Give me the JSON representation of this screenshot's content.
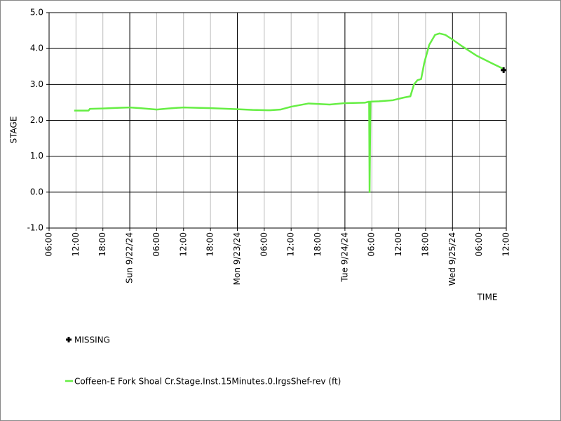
{
  "chart_data": {
    "type": "line",
    "ylabel": "STAGE",
    "xlabel": "TIME",
    "xlim": [
      6,
      108
    ],
    "ylim": [
      -1,
      5
    ],
    "xticks": [
      {
        "value": 6,
        "label": "06:00"
      },
      {
        "value": 12,
        "label": "12:00"
      },
      {
        "value": 18,
        "label": "18:00"
      },
      {
        "value": 24,
        "label": "Sun 9/22/24"
      },
      {
        "value": 30,
        "label": "06:00"
      },
      {
        "value": 36,
        "label": "12:00"
      },
      {
        "value": 42,
        "label": "18:00"
      },
      {
        "value": 48,
        "label": "Mon 9/23/24"
      },
      {
        "value": 54,
        "label": "06:00"
      },
      {
        "value": 60,
        "label": "12:00"
      },
      {
        "value": 66,
        "label": "18:00"
      },
      {
        "value": 72,
        "label": "Tue 9/24/24"
      },
      {
        "value": 78,
        "label": "06:00"
      },
      {
        "value": 84,
        "label": "12:00"
      },
      {
        "value": 90,
        "label": "18:00"
      },
      {
        "value": 96,
        "label": "Wed 9/25/24"
      },
      {
        "value": 102,
        "label": "06:00"
      },
      {
        "value": 108,
        "label": "12:00"
      }
    ],
    "yticks": [
      {
        "value": 5,
        "label": "5.0"
      },
      {
        "value": 4,
        "label": "4.0"
      },
      {
        "value": 3,
        "label": "3.0"
      },
      {
        "value": 2,
        "label": "2.0"
      },
      {
        "value": 1,
        "label": "1.0"
      },
      {
        "value": 0,
        "label": "0.0"
      },
      {
        "value": -1,
        "label": "-1.0"
      }
    ],
    "grid": true,
    "series": [
      {
        "name": "Coffeen-E Fork Shoal Cr.Stage.Inst.15Minutes.0.lrgsShef-rev (ft)",
        "color": "#66ee44",
        "x": [
          11.6,
          14.8,
          15.1,
          18,
          21.6,
          24,
          26.3,
          30,
          32.6,
          36,
          38.9,
          42,
          48,
          51.4,
          55.3,
          57.6,
          60,
          63.9,
          65.5,
          68.6,
          72,
          76.4,
          77.4,
          77.5,
          77.7,
          79.6,
          82.7,
          85,
          86.6,
          87.4,
          88.2,
          89,
          89.7,
          90.8,
          92.1,
          93.1,
          94.4,
          96,
          98.3,
          101.4,
          104.6,
          106.9,
          107.4
        ],
        "values": [
          2.27,
          2.27,
          2.32,
          2.33,
          2.35,
          2.36,
          2.34,
          2.3,
          2.33,
          2.36,
          2.35,
          2.34,
          2.31,
          2.29,
          2.28,
          2.3,
          2.38,
          2.47,
          2.46,
          2.44,
          2.48,
          2.49,
          2.52,
          0.0,
          2.52,
          2.53,
          2.56,
          2.63,
          2.67,
          3.0,
          3.12,
          3.15,
          3.6,
          4.1,
          4.38,
          4.42,
          4.38,
          4.25,
          4.05,
          3.8,
          3.6,
          3.46,
          3.42
        ]
      }
    ],
    "missing": {
      "name": "MISSING",
      "color": "#000000",
      "x": [
        107.4
      ],
      "values": [
        3.4
      ]
    }
  }
}
